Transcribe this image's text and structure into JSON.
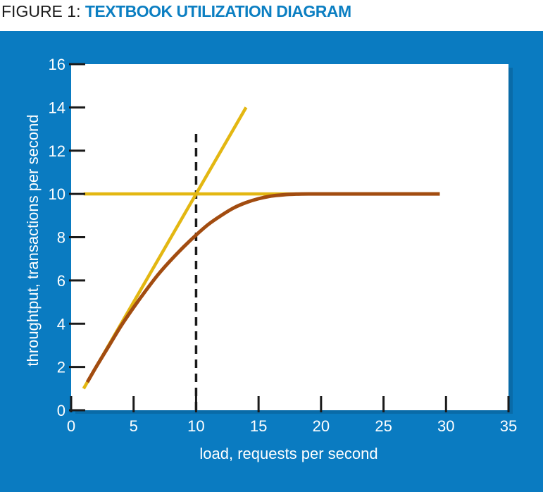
{
  "figure": {
    "prefix": "FIGURE 1: ",
    "title": "TEXTBOOK UTILIZATION DIAGRAM"
  },
  "colors": {
    "panel": "#0a7bc1",
    "plot_bg": "#ffffff",
    "asymptote": "#e3b712",
    "throughput_curve": "#a24c10",
    "dashed_line": "#1a1a1a",
    "text": "#ffffff"
  },
  "chart_data": {
    "type": "line",
    "xlabel": "load, requests per second",
    "ylabel": "throughtput, transactions per second",
    "xlim": [
      0,
      35
    ],
    "ylim": [
      0,
      16
    ],
    "xticks": [
      0,
      5,
      10,
      15,
      20,
      25,
      30,
      35
    ],
    "yticks": [
      0,
      2,
      4,
      6,
      8,
      10,
      12,
      14,
      16
    ],
    "grid": false,
    "series": [
      {
        "key": "linear",
        "style": "line",
        "color": "#e3b712",
        "x": [
          1,
          14
        ],
        "y": [
          1,
          14
        ]
      },
      {
        "key": "saturation",
        "style": "line",
        "color": "#e3b712",
        "x": [
          1,
          29.5
        ],
        "y": [
          10,
          10
        ]
      },
      {
        "key": "throughput",
        "style": "line",
        "color": "#a24c10",
        "x": [
          1.3,
          2,
          3,
          4,
          5,
          6,
          7,
          8,
          9,
          10,
          11,
          12,
          13,
          14,
          15,
          16,
          17,
          18,
          19,
          20,
          22,
          25,
          29.5
        ],
        "y": [
          1.3,
          2.0,
          2.95,
          3.9,
          4.75,
          5.55,
          6.3,
          6.95,
          7.55,
          8.1,
          8.6,
          9.0,
          9.35,
          9.6,
          9.78,
          9.9,
          9.96,
          9.99,
          10.0,
          10.0,
          10.0,
          10.0,
          10.0
        ]
      }
    ],
    "reference_lines": [
      {
        "orientation": "vertical",
        "x": 10,
        "y_range": [
          0,
          13
        ],
        "style": "dashed",
        "color": "#1a1a1a"
      }
    ]
  }
}
